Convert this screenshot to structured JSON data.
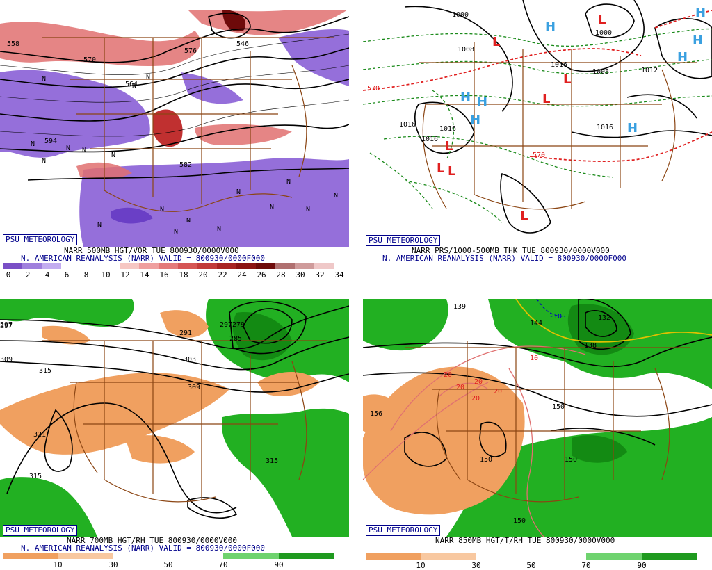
{
  "panels": [
    {
      "id": "tl",
      "badge": "PSU METEOROLOGY",
      "title": "NARR 500MB HGT/VOR TUE 800930/0000V000",
      "subtitle": "N. AMERICAN REANALYSIS (NARR) VALID = 800930/0000F000",
      "legend_ticks": [
        "0",
        "2",
        "4",
        "6",
        "8",
        "10",
        "12",
        "14",
        "16",
        "18",
        "20",
        "22",
        "24",
        "26",
        "28",
        "30",
        "32",
        "34"
      ],
      "legend_colors": [
        "#7a4fc6",
        "#9f7fdd",
        "#c3adf0",
        "#ffffff",
        "#ffffff",
        "#ffffff",
        "#f6c7c3",
        "#ef9f9f",
        "#e47a7a",
        "#d55555",
        "#c23a3a",
        "#a82424",
        "#8c1414",
        "#6e0a0a",
        "#b07070",
        "#cf9b9b",
        "#efc8c8"
      ],
      "map_labels": [
        "594",
        "582",
        "576",
        "570",
        "564",
        "558",
        "546",
        "N",
        "N",
        "N",
        "N",
        "N",
        "N",
        "N",
        "N",
        "N",
        "N",
        "N",
        "N",
        "N",
        "N",
        "N",
        "N"
      ]
    },
    {
      "id": "tr",
      "badge": "PSU METEOROLOGY",
      "title": "NARR PRS/1000-500MB THK TUE 800930/0000V000",
      "subtitle": "N. AMERICAN REANALYSIS (NARR) VALID = 800930/0000F000",
      "map_labels": [
        "1000",
        "1008",
        "1016",
        "1016",
        "1016",
        "1008",
        "1016",
        "1016",
        "1000",
        "570",
        "570",
        "1012"
      ],
      "highs": [
        "H",
        "H",
        "H",
        "H",
        "H",
        "H",
        "H",
        "H"
      ],
      "lows": [
        "L",
        "L",
        "L",
        "L",
        "L",
        "L",
        "L",
        "L"
      ]
    },
    {
      "id": "bl",
      "badge": "PSU METEOROLOGY",
      "title": "NARR 700MB HGT/RH TUE 800930/0000V000",
      "subtitle": "N. AMERICAN REANALYSIS (NARR) VALID = 800930/0000F000",
      "legend_ticks": [
        "10",
        "30",
        "50",
        "70",
        "90"
      ],
      "legend_colors": [
        "#f0a060",
        "#f8c8a0",
        "#ffffff",
        "#ffffff",
        "#6fd36f",
        "#1f9a1f"
      ],
      "map_labels": [
        "297",
        "291",
        "297",
        "303",
        "309",
        "315",
        "321",
        "315",
        "315",
        "279",
        "285",
        "297",
        "309"
      ]
    },
    {
      "id": "br",
      "badge": "PSU METEOROLOGY",
      "title": "NARR 850MB HGT/T/RH TUE 800930/0000V000",
      "subtitle": "",
      "legend_ticks": [
        "10",
        "30",
        "50",
        "70",
        "90"
      ],
      "legend_colors": [
        "#f0a060",
        "#f8c8a0",
        "#ffffff",
        "#ffffff",
        "#6fd36f",
        "#1f9a1f"
      ],
      "map_labels": [
        "156",
        "150",
        "150",
        "150",
        "150",
        "144",
        "138",
        "132",
        "-10",
        "10",
        "20",
        "20",
        "20",
        "20",
        "20",
        "139"
      ]
    }
  ],
  "colors": {
    "vort_purple": "#8a5fd6",
    "vort_red": "#e07070",
    "rh_green": "#22b022",
    "rh_dkgreen": "#138a13",
    "rh_orange": "#f0a060",
    "border_brown": "#8b4513",
    "high_blue": "#3aa0e0",
    "low_red": "#e02020",
    "thk_green": "#1a8a1a",
    "thk_red": "#e02020"
  }
}
